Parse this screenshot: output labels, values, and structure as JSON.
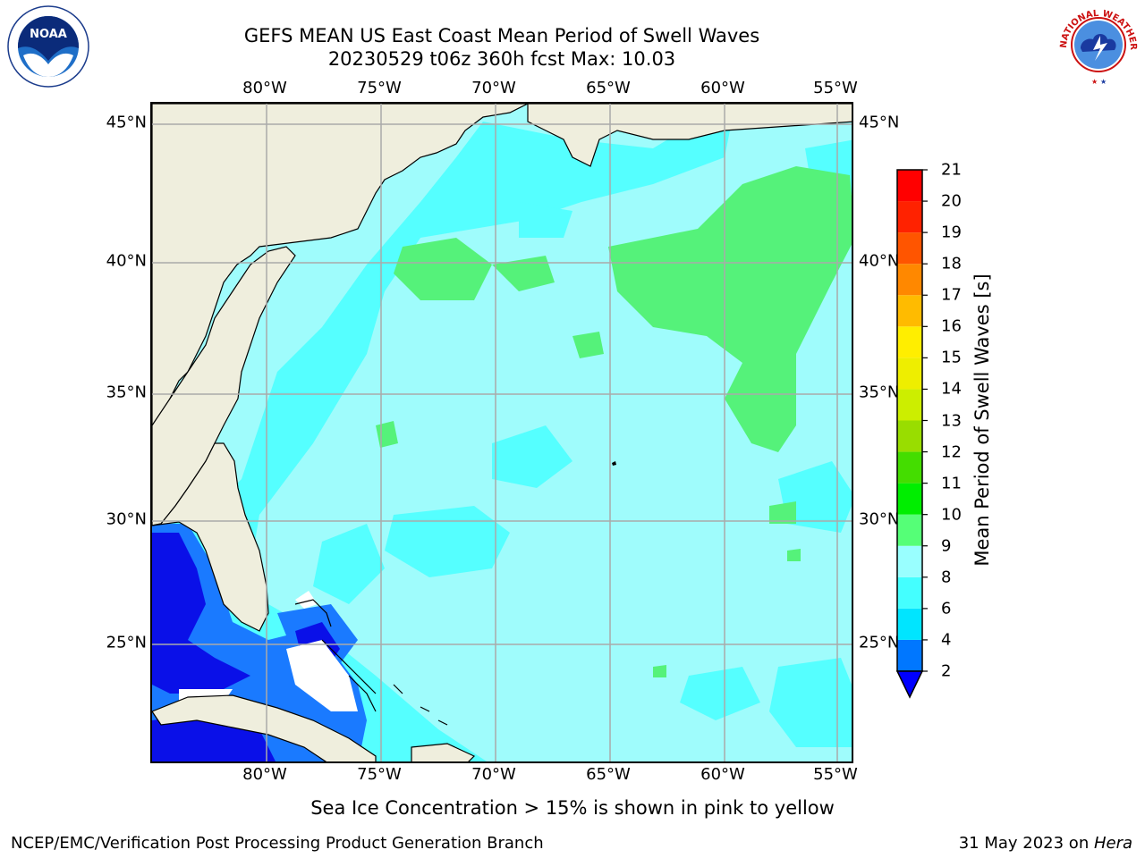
{
  "header": {
    "title_line1": "GEFS MEAN US East Coast Mean Period of Swell Waves",
    "title_line2": "20230529 t06z 360h fcst   Max: 10.03"
  },
  "axes": {
    "lon_labels": [
      "80°W",
      "75°W",
      "70°W",
      "65°W",
      "60°W",
      "55°W"
    ],
    "lat_labels": [
      "45°N",
      "40°N",
      "35°N",
      "30°N",
      "25°N"
    ]
  },
  "colorbar": {
    "title": "Mean Period of Swell Waves [s]",
    "tick_labels": [
      "21",
      "20",
      "19",
      "18",
      "17",
      "16",
      "15",
      "14",
      "13",
      "12",
      "11",
      "10",
      "9",
      "8",
      "6",
      "4",
      "2"
    ],
    "levels": [
      2,
      4,
      6,
      8,
      9,
      10,
      11,
      12,
      13,
      14,
      15,
      16,
      17,
      18,
      19,
      20,
      21
    ],
    "colors": [
      "#0000ff",
      "#0077ff",
      "#00e5ff",
      "#44ffff",
      "#99ffff",
      "#55ff77",
      "#00ee00",
      "#44dd00",
      "#99dd00",
      "#ccee00",
      "#eeee00",
      "#ffee00",
      "#ffbb00",
      "#ff8800",
      "#ff5500",
      "#ff2200",
      "#ff0000"
    ]
  },
  "map": {
    "land_color": "#efeedd",
    "grid_color": "#aaaaaa",
    "zone_colors": {
      "2-4": "#0a10e8",
      "4-6": "#1a7aff",
      "6-8": "#55ffff",
      "8-9": "#9ffcfc",
      "9-10": "#55f27a",
      "no_data": "#ffffff"
    }
  },
  "note": "Sea Ice Concentration > 15% is shown in pink to yellow",
  "footer": {
    "left": "NCEP/EMC/Verification Post Processing Product Generation Branch",
    "right_date": "31 May 2023 on ",
    "right_machine": "Hera"
  },
  "logos": {
    "left": "noaa-logo",
    "right": "nws-logo",
    "noaa_text": "NOAA",
    "nws_ring_text": "NATIONAL WEATHER SERVICE"
  }
}
